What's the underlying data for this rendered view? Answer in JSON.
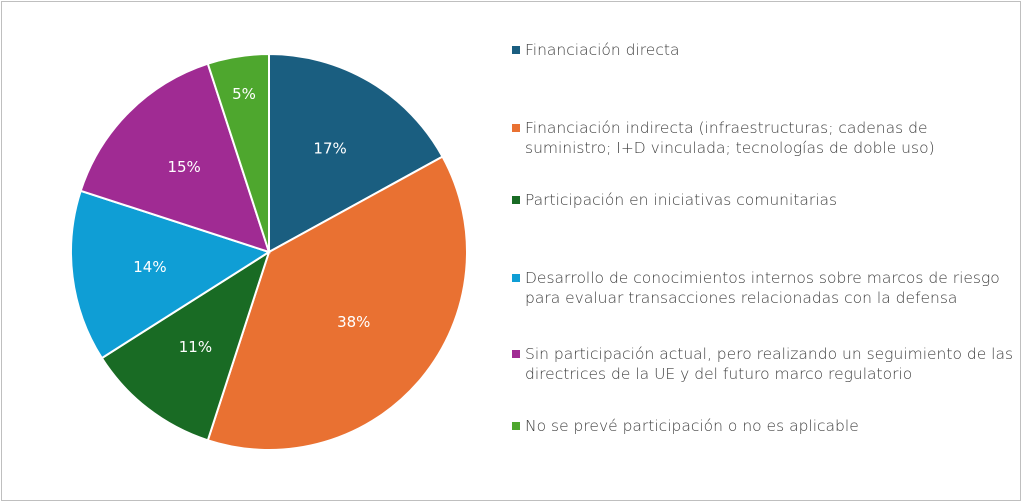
{
  "chart_data": {
    "type": "pie",
    "categories": [
      "Financiación directa",
      "Financiación indirecta (infraestructuras; cadenas de suministro; I+D vinculada; tecnologías de doble uso)",
      "Participación en iniciativas comunitarias",
      "Desarrollo de conocimientos internos sobre marcos de riesgo para evaluar transacciones relacionadas con la defensa",
      "Sin participación actual, pero realizando un seguimiento de las directrices de la UE y del futuro marco regulatorio",
      "No se prevé participación o no es aplicable"
    ],
    "values": [
      17,
      38,
      11,
      14,
      15,
      5
    ],
    "labels": [
      "17%",
      "38%",
      "11%",
      "14%",
      "15%",
      "5%"
    ],
    "colors": [
      "#1a5e80",
      "#e97132",
      "#196b24",
      "#0f9ed5",
      "#a02b93",
      "#4ea72e"
    ],
    "legend_position": "right",
    "title": ""
  }
}
